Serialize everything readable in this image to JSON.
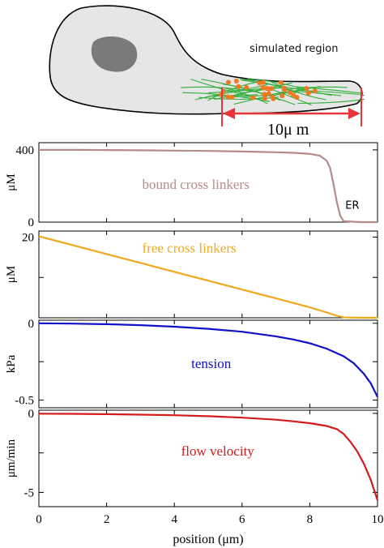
{
  "schematic": {
    "region_label": "simulated region",
    "scale_label": "10μ m"
  },
  "colors": {
    "bound": "#b58a8a",
    "free": "#f0a81e",
    "tension": "#1010c8",
    "flow": "#d41a1a",
    "arrow": "#e8343a",
    "fibers": "#2fae3a",
    "dots": "#f07a22",
    "cell_fill": "#e6e6e6",
    "nucleus_fill": "#7a7a7a"
  },
  "chart_data": [
    {
      "type": "line",
      "ylabel": "μM",
      "label": "bound cross linkers",
      "annotation": "ER",
      "ylim": [
        0,
        440
      ],
      "yticks": [
        0,
        400
      ],
      "ytick_labels": [
        "0",
        "400"
      ],
      "xlim": [
        0,
        10
      ],
      "series": [
        {
          "x": [
            0,
            1,
            2,
            3,
            4,
            5,
            6,
            7,
            7.5,
            8,
            8.3,
            8.5,
            8.6,
            8.7,
            8.8,
            8.9,
            9.0,
            9.5,
            10
          ],
          "values": [
            400,
            400,
            399,
            398,
            396,
            394,
            391,
            387,
            384,
            378,
            368,
            340,
            300,
            210,
            110,
            35,
            5,
            0,
            0
          ]
        }
      ]
    },
    {
      "type": "line",
      "ylabel": "μM",
      "label": "free cross linkers",
      "ylim": [
        0,
        21.5
      ],
      "yticks": [
        0,
        10,
        20
      ],
      "ytick_labels": [
        "",
        "",
        "20"
      ],
      "xlim": [
        0,
        10
      ],
      "series": [
        {
          "x": [
            0,
            1,
            2,
            3,
            4,
            5,
            6,
            7,
            8,
            8.5,
            8.8,
            9.0,
            9.5,
            10
          ],
          "values": [
            20.2,
            18.0,
            15.8,
            13.6,
            11.4,
            9.2,
            7.0,
            4.8,
            2.6,
            1.3,
            0.5,
            0.1,
            0,
            0
          ]
        }
      ]
    },
    {
      "type": "line",
      "ylabel": "kPa",
      "label": "tension",
      "ylim": [
        -0.55,
        0.02
      ],
      "yticks": [
        0,
        -0.25,
        -0.5
      ],
      "ytick_labels": [
        "0",
        "",
        "-0.5"
      ],
      "xlim": [
        0,
        10
      ],
      "series": [
        {
          "x": [
            0,
            1,
            2,
            3,
            4,
            5,
            6,
            7,
            7.5,
            8,
            8.5,
            9,
            9.3,
            9.6,
            9.8,
            10
          ],
          "values": [
            0,
            -0.002,
            -0.006,
            -0.012,
            -0.022,
            -0.036,
            -0.055,
            -0.085,
            -0.105,
            -0.13,
            -0.165,
            -0.215,
            -0.26,
            -0.33,
            -0.39,
            -0.48
          ]
        }
      ]
    },
    {
      "type": "line",
      "ylabel": "μm/min",
      "label": "flow velocity",
      "xlabel": "position (μm)",
      "ylim": [
        -5.9,
        0.2
      ],
      "yticks": [
        0,
        -2.5,
        -5
      ],
      "ytick_labels": [
        "0",
        "",
        "-5"
      ],
      "xlim": [
        0,
        10
      ],
      "xticks": [
        0,
        2,
        4,
        6,
        8,
        10
      ],
      "xtick_labels": [
        "0",
        "2",
        "4",
        "6",
        "8",
        "10"
      ],
      "series": [
        {
          "x": [
            0,
            1,
            2,
            3,
            4,
            5,
            6,
            7,
            7.5,
            8,
            8.5,
            8.8,
            9.0,
            9.2,
            9.4,
            9.6,
            9.8,
            10
          ],
          "values": [
            -0.02,
            -0.03,
            -0.05,
            -0.08,
            -0.12,
            -0.18,
            -0.27,
            -0.4,
            -0.5,
            -0.62,
            -0.8,
            -1.0,
            -1.3,
            -1.8,
            -2.4,
            -3.2,
            -4.2,
            -5.5
          ]
        }
      ]
    }
  ]
}
